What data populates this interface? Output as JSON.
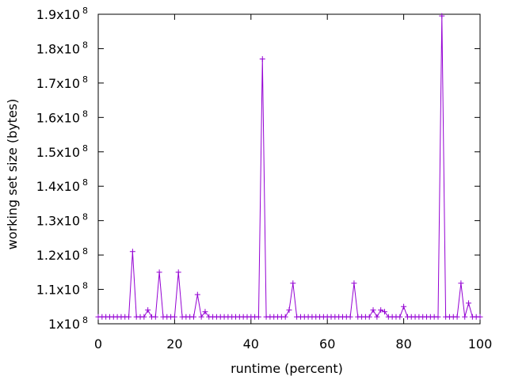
{
  "chart_data": {
    "type": "line",
    "xlabel": "runtime (percent)",
    "ylabel": "working set size (bytes)",
    "xlim": [
      0,
      100
    ],
    "ylim": [
      100000000,
      190000000
    ],
    "x_ticks": [
      {
        "value": 0,
        "label": "0"
      },
      {
        "value": 20,
        "label": "20"
      },
      {
        "value": 40,
        "label": "40"
      },
      {
        "value": 60,
        "label": "60"
      },
      {
        "value": 80,
        "label": "80"
      },
      {
        "value": 100,
        "label": "100"
      }
    ],
    "y_ticks": [
      {
        "value": 100000000,
        "mantissa": "1x10",
        "exponent": "8"
      },
      {
        "value": 110000000,
        "mantissa": "1.1x10",
        "exponent": "8"
      },
      {
        "value": 120000000,
        "mantissa": "1.2x10",
        "exponent": "8"
      },
      {
        "value": 130000000,
        "mantissa": "1.3x10",
        "exponent": "8"
      },
      {
        "value": 140000000,
        "mantissa": "1.4x10",
        "exponent": "8"
      },
      {
        "value": 150000000,
        "mantissa": "1.5x10",
        "exponent": "8"
      },
      {
        "value": 160000000,
        "mantissa": "1.6x10",
        "exponent": "8"
      },
      {
        "value": 170000000,
        "mantissa": "1.7x10",
        "exponent": "8"
      },
      {
        "value": 180000000,
        "mantissa": "1.8x10",
        "exponent": "8"
      },
      {
        "value": 190000000,
        "mantissa": "1.9x10",
        "exponent": "8"
      }
    ],
    "grid": false,
    "series": [
      {
        "color": "#9400d3",
        "marker": "plus",
        "x": [
          0,
          1,
          2,
          3,
          4,
          5,
          6,
          7,
          8,
          9,
          10,
          11,
          12,
          13,
          14,
          15,
          16,
          17,
          18,
          19,
          20,
          21,
          22,
          23,
          24,
          25,
          26,
          27,
          28,
          29,
          30,
          31,
          32,
          33,
          34,
          35,
          36,
          37,
          38,
          39,
          40,
          41,
          42,
          43,
          44,
          45,
          46,
          47,
          48,
          49,
          50,
          51,
          52,
          53,
          54,
          55,
          56,
          57,
          58,
          59,
          60,
          61,
          62,
          63,
          64,
          65,
          66,
          67,
          68,
          69,
          70,
          71,
          72,
          73,
          74,
          75,
          76,
          77,
          78,
          79,
          80,
          81,
          82,
          83,
          84,
          85,
          86,
          87,
          88,
          89,
          90,
          91,
          92,
          93,
          94,
          95,
          96,
          97,
          98,
          99,
          100
        ],
        "y": [
          102000000,
          102000000,
          102000000,
          102000000,
          102000000,
          102000000,
          102000000,
          102000000,
          102000000,
          121000000,
          102000000,
          102000000,
          102000000,
          104000000,
          102000000,
          102000000,
          115000000,
          102000000,
          102000000,
          102000000,
          102000000,
          115000000,
          102000000,
          102000000,
          102000000,
          102000000,
          108500000,
          102000000,
          103500000,
          102000000,
          102000000,
          102000000,
          102000000,
          102000000,
          102000000,
          102000000,
          102000000,
          102000000,
          102000000,
          102000000,
          102000000,
          102000000,
          102000000,
          177000000,
          102000000,
          102000000,
          102000000,
          102000000,
          102000000,
          102000000,
          104000000,
          111800000,
          102000000,
          102000000,
          102000000,
          102000000,
          102000000,
          102000000,
          102000000,
          102000000,
          102000000,
          102000000,
          102000000,
          102000000,
          102000000,
          102000000,
          102000000,
          111800000,
          102000000,
          102000000,
          102000000,
          102000000,
          104000000,
          102000000,
          104000000,
          103500000,
          102000000,
          102000000,
          102000000,
          102000000,
          105000000,
          102000000,
          102000000,
          102000000,
          102000000,
          102000000,
          102000000,
          102000000,
          102000000,
          102000000,
          189500000,
          102000000,
          102000000,
          102000000,
          102000000,
          111800000,
          102000000,
          106000000,
          102000000,
          102000000,
          102000000
        ]
      }
    ]
  }
}
